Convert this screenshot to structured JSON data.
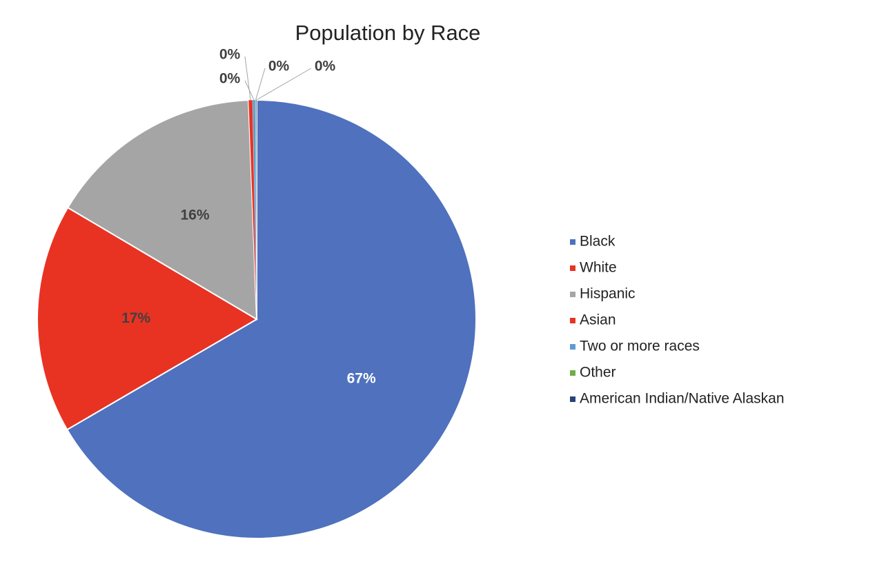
{
  "chart_data": {
    "type": "pie",
    "title": "Population by Race",
    "categories": [
      "Black",
      "White",
      "Hispanic",
      "Asian",
      "Two or more races",
      "Other",
      "American Indian/Native Alaskan"
    ],
    "values": [
      67,
      17,
      16,
      0.3,
      0.2,
      0.05,
      0.05
    ],
    "value_labels": [
      "67%",
      "17%",
      "16%",
      "0%",
      "0%",
      "0%",
      "0%"
    ],
    "colors": [
      "#4f71be",
      "#e83323",
      "#a5a5a5",
      "#e83323",
      "#5b9bd5",
      "#70ad47",
      "#264478"
    ],
    "legend": "right"
  }
}
